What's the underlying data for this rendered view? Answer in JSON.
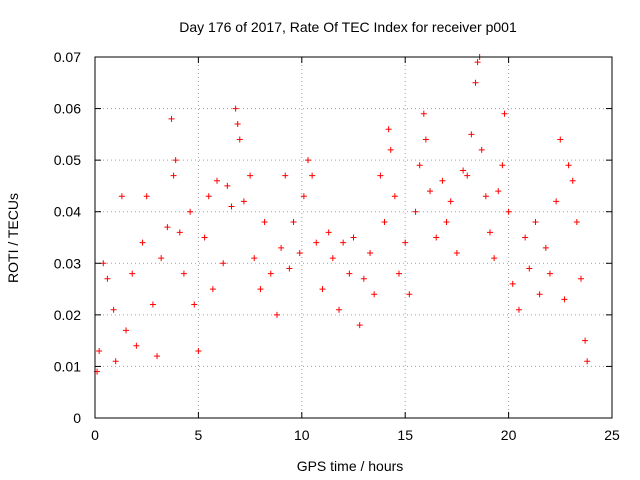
{
  "chart_data": {
    "type": "scatter",
    "title": "Day 176 of 2017, Rate Of TEC Index for receiver p001",
    "xlabel": "GPS time / hours",
    "ylabel": "ROTI / TECUs",
    "xlim": [
      0,
      25
    ],
    "ylim": [
      0,
      0.07
    ],
    "x_ticks": [
      "0",
      "5",
      "10",
      "15",
      "20",
      "25"
    ],
    "y_ticks": [
      "0",
      "0.01",
      "0.02",
      "0.03",
      "0.04",
      "0.05",
      "0.06",
      "0.07"
    ],
    "grid": true,
    "marker": "+",
    "color": "#ff0000",
    "series": [
      {
        "points": [
          [
            0.1,
            0.009
          ],
          [
            0.2,
            0.013
          ],
          [
            0.4,
            0.03
          ],
          [
            0.6,
            0.027
          ],
          [
            0.9,
            0.021
          ],
          [
            1.0,
            0.011
          ],
          [
            1.3,
            0.043
          ],
          [
            1.5,
            0.017
          ],
          [
            1.8,
            0.028
          ],
          [
            2.0,
            0.014
          ],
          [
            2.3,
            0.034
          ],
          [
            2.5,
            0.043
          ],
          [
            2.8,
            0.022
          ],
          [
            3.0,
            0.012
          ],
          [
            3.2,
            0.031
          ],
          [
            3.5,
            0.037
          ],
          [
            3.7,
            0.058
          ],
          [
            3.8,
            0.047
          ],
          [
            3.9,
            0.05
          ],
          [
            4.1,
            0.036
          ],
          [
            4.3,
            0.028
          ],
          [
            4.6,
            0.04
          ],
          [
            4.8,
            0.022
          ],
          [
            5.0,
            0.013
          ],
          [
            5.3,
            0.035
          ],
          [
            5.5,
            0.043
          ],
          [
            5.7,
            0.025
          ],
          [
            5.9,
            0.046
          ],
          [
            6.2,
            0.03
          ],
          [
            6.4,
            0.045
          ],
          [
            6.6,
            0.041
          ],
          [
            6.8,
            0.06
          ],
          [
            6.9,
            0.057
          ],
          [
            7.0,
            0.054
          ],
          [
            7.2,
            0.042
          ],
          [
            7.5,
            0.047
          ],
          [
            7.7,
            0.031
          ],
          [
            8.0,
            0.025
          ],
          [
            8.2,
            0.038
          ],
          [
            8.5,
            0.028
          ],
          [
            8.8,
            0.02
          ],
          [
            9.0,
            0.033
          ],
          [
            9.2,
            0.047
          ],
          [
            9.4,
            0.029
          ],
          [
            9.6,
            0.038
          ],
          [
            9.9,
            0.032
          ],
          [
            10.1,
            0.043
          ],
          [
            10.3,
            0.05
          ],
          [
            10.5,
            0.047
          ],
          [
            10.7,
            0.034
          ],
          [
            11.0,
            0.025
          ],
          [
            11.3,
            0.036
          ],
          [
            11.5,
            0.031
          ],
          [
            11.8,
            0.021
          ],
          [
            12.0,
            0.034
          ],
          [
            12.3,
            0.028
          ],
          [
            12.5,
            0.035
          ],
          [
            12.8,
            0.018
          ],
          [
            13.0,
            0.027
          ],
          [
            13.3,
            0.032
          ],
          [
            13.5,
            0.024
          ],
          [
            13.8,
            0.047
          ],
          [
            14.0,
            0.038
          ],
          [
            14.2,
            0.056
          ],
          [
            14.3,
            0.052
          ],
          [
            14.5,
            0.043
          ],
          [
            14.7,
            0.028
          ],
          [
            15.0,
            0.034
          ],
          [
            15.2,
            0.024
          ],
          [
            15.5,
            0.04
          ],
          [
            15.7,
            0.049
          ],
          [
            15.9,
            0.059
          ],
          [
            16.0,
            0.054
          ],
          [
            16.2,
            0.044
          ],
          [
            16.5,
            0.035
          ],
          [
            16.8,
            0.046
          ],
          [
            17.0,
            0.038
          ],
          [
            17.2,
            0.042
          ],
          [
            17.5,
            0.032
          ],
          [
            17.8,
            0.048
          ],
          [
            18.0,
            0.047
          ],
          [
            18.2,
            0.055
          ],
          [
            18.4,
            0.065
          ],
          [
            18.5,
            0.069
          ],
          [
            18.6,
            0.07
          ],
          [
            18.7,
            0.052
          ],
          [
            18.9,
            0.043
          ],
          [
            19.1,
            0.036
          ],
          [
            19.3,
            0.031
          ],
          [
            19.5,
            0.044
          ],
          [
            19.7,
            0.049
          ],
          [
            19.8,
            0.059
          ],
          [
            20.0,
            0.04
          ],
          [
            20.2,
            0.026
          ],
          [
            20.5,
            0.021
          ],
          [
            20.8,
            0.035
          ],
          [
            21.0,
            0.029
          ],
          [
            21.3,
            0.038
          ],
          [
            21.5,
            0.024
          ],
          [
            21.8,
            0.033
          ],
          [
            22.0,
            0.028
          ],
          [
            22.3,
            0.042
          ],
          [
            22.5,
            0.054
          ],
          [
            22.7,
            0.023
          ],
          [
            22.9,
            0.049
          ],
          [
            23.1,
            0.046
          ],
          [
            23.3,
            0.038
          ],
          [
            23.5,
            0.027
          ],
          [
            23.7,
            0.015
          ],
          [
            23.8,
            0.011
          ]
        ]
      }
    ]
  }
}
